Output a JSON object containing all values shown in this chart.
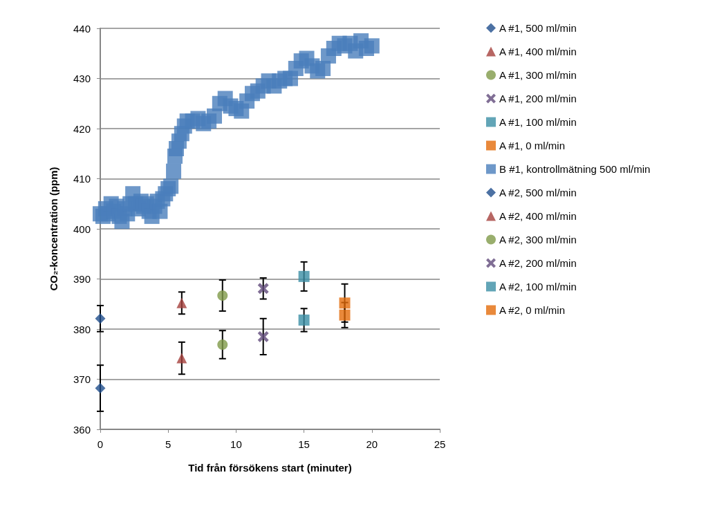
{
  "chart_data": {
    "type": "scatter",
    "xlabel": "Tid från försökens start (minuter)",
    "ylabel": "CO₂-koncentration (ppm)",
    "xlim": [
      0,
      25
    ],
    "xticks": [
      0,
      5,
      10,
      15,
      20,
      25
    ],
    "ylim": [
      360,
      440
    ],
    "yticks": [
      360,
      370,
      380,
      390,
      400,
      410,
      420,
      430,
      440
    ],
    "grid": "y",
    "legend": "right",
    "series": [
      {
        "name": "A #1, 500 ml/min",
        "color": "#1f4e8c",
        "marker": "diamond",
        "x": [
          0
        ],
        "values": [
          382.1
        ],
        "errors": [
          2.6
        ]
      },
      {
        "name": "A #1, 400 ml/min",
        "color": "#a5403c",
        "marker": "triangle",
        "x": [
          6
        ],
        "values": [
          385.2
        ],
        "errors": [
          2.2
        ]
      },
      {
        "name": "A #1, 300 ml/min",
        "color": "#7f9a48",
        "marker": "circle",
        "x": [
          9
        ],
        "values": [
          386.7
        ],
        "errors": [
          3.1
        ]
      },
      {
        "name": "A #1, 200 ml/min",
        "color": "#604a7b",
        "marker": "cross",
        "x": [
          12
        ],
        "values": [
          388.1
        ],
        "errors": [
          2.1
        ]
      },
      {
        "name": "A #1, 100 ml/min",
        "color": "#3b8ea5",
        "marker": "square",
        "x": [
          15
        ],
        "values": [
          390.5
        ],
        "errors": [
          2.9
        ]
      },
      {
        "name": "A #1, 0 ml/min",
        "color": "#e46c0a",
        "marker": "square",
        "x": [
          18
        ],
        "values": [
          385.2
        ],
        "errors": [
          3.8
        ]
      },
      {
        "name": "B #1, kontrollmätning 500 ml/min",
        "color": "#4a7ebb",
        "marker": "square",
        "x": [
          0,
          0.2,
          0.4,
          0.6,
          0.8,
          1.0,
          1.2,
          1.4,
          1.6,
          1.8,
          2.0,
          2.2,
          2.4,
          2.6,
          2.8,
          3.0,
          3.2,
          3.4,
          3.6,
          3.8,
          4.0,
          4.2,
          4.4,
          4.6,
          4.8,
          5.0,
          5.2,
          5.4,
          5.5,
          5.6,
          5.8,
          6.0,
          6.2,
          6.4,
          6.8,
          7.2,
          7.6,
          8.0,
          8.4,
          8.8,
          9.2,
          9.6,
          10.0,
          10.4,
          10.8,
          11.2,
          11.6,
          12.0,
          12.4,
          12.8,
          13.2,
          13.6,
          14.0,
          14.4,
          14.8,
          15.2,
          15.6,
          16.0,
          16.4,
          16.8,
          17.2,
          17.6,
          18.0,
          18.4,
          18.8,
          19.2,
          19.6,
          20.0
        ],
        "values": [
          403,
          402.5,
          404,
          403,
          405,
          403.5,
          404.5,
          402.5,
          401.5,
          404,
          403,
          405,
          407,
          405,
          404,
          405.5,
          404.5,
          405,
          403.5,
          402.5,
          404.5,
          405.5,
          403.5,
          406,
          407,
          408,
          408.5,
          411.5,
          414.5,
          416,
          417.5,
          419,
          420.5,
          421.5,
          421.5,
          422,
          421,
          421.5,
          422.5,
          425,
          426,
          424.5,
          424,
          423.5,
          425.5,
          427,
          427.5,
          428.5,
          429.5,
          428.5,
          429.5,
          430,
          430,
          432,
          433.5,
          434,
          432.5,
          431.5,
          432,
          434.5,
          436,
          437,
          436.5,
          437,
          435.5,
          437.5,
          436,
          436.5
        ]
      },
      {
        "name": "A #2, 500 ml/min",
        "color": "#1f4e8c",
        "marker": "diamond",
        "x": [
          0
        ],
        "values": [
          368.2
        ],
        "errors": [
          4.6
        ]
      },
      {
        "name": "A #2, 400 ml/min",
        "color": "#a5403c",
        "marker": "triangle",
        "x": [
          6
        ],
        "values": [
          374.2
        ],
        "errors": [
          3.2
        ]
      },
      {
        "name": "A #2, 300 ml/min",
        "color": "#7f9a48",
        "marker": "circle",
        "x": [
          9
        ],
        "values": [
          376.9
        ],
        "errors": [
          2.8
        ]
      },
      {
        "name": "A #2, 200 ml/min",
        "color": "#604a7b",
        "marker": "cross",
        "x": [
          12
        ],
        "values": [
          378.5
        ],
        "errors": [
          3.6
        ]
      },
      {
        "name": "A #2, 100 ml/min",
        "color": "#3b8ea5",
        "marker": "square",
        "x": [
          15
        ],
        "values": [
          381.8
        ],
        "errors": [
          2.3
        ]
      },
      {
        "name": "A #2, 0 ml/min",
        "color": "#e46c0a",
        "marker": "square",
        "x": [
          18
        ],
        "values": [
          382.8
        ],
        "errors": [
          2.5
        ]
      }
    ]
  }
}
